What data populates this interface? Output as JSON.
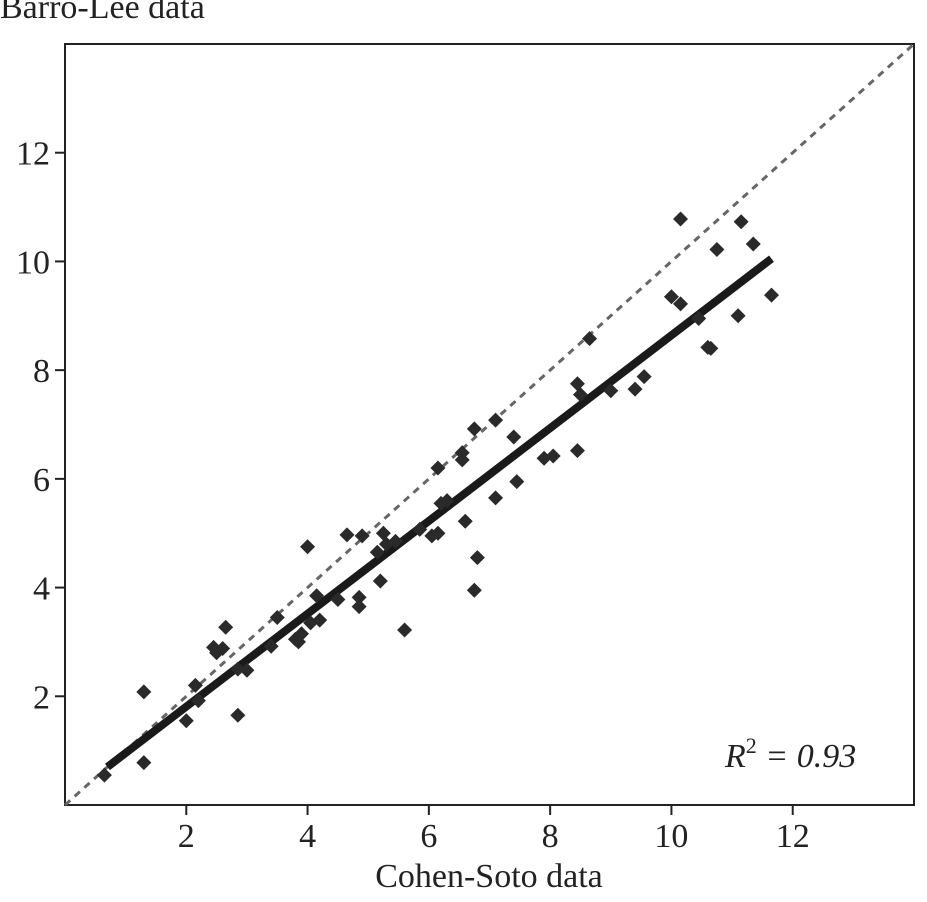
{
  "chart_data": {
    "type": "scatter",
    "title": "",
    "ylabel": "Barro-Lee data",
    "xlabel": "Cohen-Soto data",
    "xlim": [
      0,
      14
    ],
    "ylim": [
      0,
      14
    ],
    "xticks": [
      2,
      4,
      6,
      8,
      10,
      12
    ],
    "yticks": [
      2,
      4,
      6,
      8,
      10,
      12
    ],
    "grid": false,
    "annotation": {
      "r_label": "R",
      "r_sup": "2",
      "r_text": " = 0.93"
    },
    "reference_line": {
      "style": "dashed",
      "color": "#666666",
      "from": [
        0,
        0
      ],
      "to": [
        14,
        14
      ]
    },
    "fit_line": {
      "color": "#1a1a1a",
      "from": [
        0.7,
        0.7
      ],
      "to": [
        11.65,
        10.05
      ]
    },
    "points": [
      {
        "x": 0.65,
        "y": 0.55
      },
      {
        "x": 1.3,
        "y": 0.78
      },
      {
        "x": 1.3,
        "y": 2.08
      },
      {
        "x": 2.0,
        "y": 1.55
      },
      {
        "x": 2.15,
        "y": 2.2
      },
      {
        "x": 2.2,
        "y": 1.92
      },
      {
        "x": 2.45,
        "y": 2.9
      },
      {
        "x": 2.5,
        "y": 2.8
      },
      {
        "x": 2.6,
        "y": 2.88
      },
      {
        "x": 2.65,
        "y": 3.27
      },
      {
        "x": 2.85,
        "y": 2.5
      },
      {
        "x": 2.85,
        "y": 1.65
      },
      {
        "x": 3.0,
        "y": 2.48
      },
      {
        "x": 3.4,
        "y": 2.92
      },
      {
        "x": 3.5,
        "y": 3.45
      },
      {
        "x": 3.8,
        "y": 3.05
      },
      {
        "x": 3.85,
        "y": 3.0
      },
      {
        "x": 3.9,
        "y": 3.15
      },
      {
        "x": 4.0,
        "y": 4.75
      },
      {
        "x": 4.05,
        "y": 3.35
      },
      {
        "x": 4.15,
        "y": 3.85
      },
      {
        "x": 4.2,
        "y": 3.4
      },
      {
        "x": 4.5,
        "y": 3.78
      },
      {
        "x": 4.65,
        "y": 4.97
      },
      {
        "x": 4.85,
        "y": 3.82
      },
      {
        "x": 4.85,
        "y": 3.65
      },
      {
        "x": 4.9,
        "y": 4.95
      },
      {
        "x": 5.15,
        "y": 4.65
      },
      {
        "x": 5.2,
        "y": 4.12
      },
      {
        "x": 5.25,
        "y": 5.0
      },
      {
        "x": 5.3,
        "y": 4.8
      },
      {
        "x": 5.45,
        "y": 4.85
      },
      {
        "x": 5.6,
        "y": 3.22
      },
      {
        "x": 5.85,
        "y": 5.07
      },
      {
        "x": 6.05,
        "y": 4.95
      },
      {
        "x": 6.15,
        "y": 5.0
      },
      {
        "x": 6.15,
        "y": 6.2
      },
      {
        "x": 6.2,
        "y": 5.55
      },
      {
        "x": 6.3,
        "y": 5.6
      },
      {
        "x": 6.55,
        "y": 6.35
      },
      {
        "x": 6.55,
        "y": 6.48
      },
      {
        "x": 6.6,
        "y": 5.22
      },
      {
        "x": 6.75,
        "y": 6.92
      },
      {
        "x": 6.75,
        "y": 3.95
      },
      {
        "x": 6.8,
        "y": 4.55
      },
      {
        "x": 7.1,
        "y": 7.08
      },
      {
        "x": 7.1,
        "y": 5.65
      },
      {
        "x": 7.4,
        "y": 6.77
      },
      {
        "x": 7.45,
        "y": 5.95
      },
      {
        "x": 7.9,
        "y": 6.38
      },
      {
        "x": 8.05,
        "y": 6.42
      },
      {
        "x": 8.45,
        "y": 6.52
      },
      {
        "x": 8.45,
        "y": 7.75
      },
      {
        "x": 8.5,
        "y": 7.55
      },
      {
        "x": 8.65,
        "y": 8.58
      },
      {
        "x": 9.0,
        "y": 7.62
      },
      {
        "x": 9.4,
        "y": 7.65
      },
      {
        "x": 9.55,
        "y": 7.88
      },
      {
        "x": 10.0,
        "y": 9.35
      },
      {
        "x": 10.15,
        "y": 9.22
      },
      {
        "x": 10.15,
        "y": 10.78
      },
      {
        "x": 10.45,
        "y": 8.95
      },
      {
        "x": 10.6,
        "y": 8.42
      },
      {
        "x": 10.65,
        "y": 8.4
      },
      {
        "x": 10.75,
        "y": 10.22
      },
      {
        "x": 11.1,
        "y": 9.0
      },
      {
        "x": 11.15,
        "y": 10.73
      },
      {
        "x": 11.35,
        "y": 10.32
      },
      {
        "x": 11.65,
        "y": 9.38
      }
    ]
  }
}
